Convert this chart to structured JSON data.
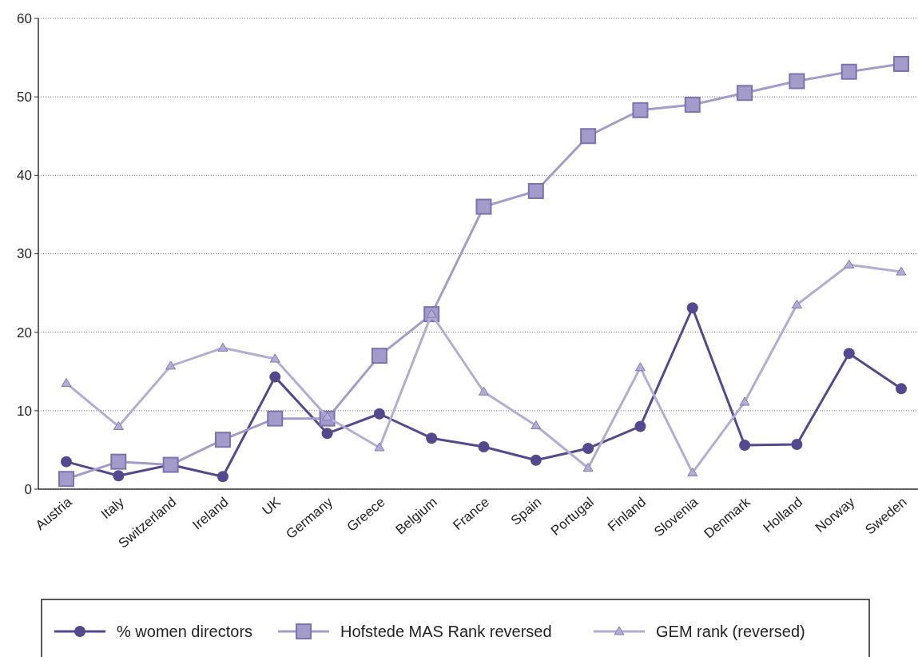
{
  "chart_data": {
    "type": "line",
    "categories": [
      "Austria",
      "Italy",
      "Switzerland",
      "Ireland",
      "UK",
      "Germany",
      "Greece",
      "Belgium",
      "France",
      "Spain",
      "Portugal",
      "Finland",
      "Slovenia",
      "Denmark",
      "Holland",
      "Norway",
      "Sweden"
    ],
    "series": [
      {
        "name": "% women directors",
        "color": "#54498f",
        "marker": "circle",
        "values": [
          3.5,
          1.7,
          3.1,
          1.6,
          14.3,
          7.1,
          9.6,
          6.5,
          5.4,
          3.7,
          5.2,
          8.0,
          23.1,
          5.6,
          5.7,
          17.3,
          12.8
        ]
      },
      {
        "name": "Hofstede MAS Rank reversed",
        "color": "#a39bc9",
        "marker": "square",
        "values": [
          1.3,
          3.5,
          3.1,
          6.3,
          9.0,
          9.0,
          17.0,
          22.3,
          36.0,
          38.0,
          45.0,
          48.3,
          49.0,
          50.5,
          52.0,
          53.2,
          54.2
        ]
      },
      {
        "name": "GEM rank (reversed)",
        "color": "#b3acd3",
        "marker": "triangle",
        "values": [
          13.5,
          8.0,
          15.7,
          18.0,
          16.6,
          9.2,
          5.3,
          22.3,
          12.4,
          8.1,
          2.7,
          15.5,
          2.1,
          11.1,
          23.5,
          28.6,
          27.7
        ]
      }
    ],
    "ylim": [
      0,
      60
    ],
    "yticks": [
      0,
      10,
      20,
      30,
      40,
      50,
      60
    ],
    "grid": "y",
    "legend": "bottom",
    "line_style": "solid"
  }
}
